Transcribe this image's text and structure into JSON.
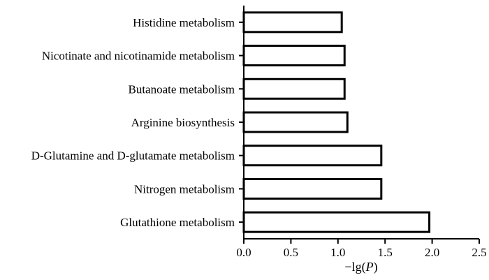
{
  "chart_data": {
    "type": "bar",
    "orientation": "horizontal",
    "categories": [
      "Histidine metabolism",
      "Nicotinate and nicotinamide metabolism",
      "Butanoate metabolism",
      "Arginine biosynthesis",
      "D-Glutamine and D-glutamate metabolism",
      "Nitrogen metabolism",
      "Glutathione metabolism"
    ],
    "values": [
      1.04,
      1.07,
      1.07,
      1.1,
      1.46,
      1.46,
      1.97
    ],
    "title": "",
    "xlabel_parts": [
      "−lg(",
      "P",
      ")"
    ],
    "ylabel": "",
    "xlim": [
      0,
      2.5
    ],
    "xticks": [
      "0.0",
      "0.5",
      "1.0",
      "1.5",
      "2.0",
      "2.5"
    ],
    "grid": false,
    "legend": "none",
    "bar_fill": "#ffffff",
    "bar_stroke": "#000000"
  }
}
